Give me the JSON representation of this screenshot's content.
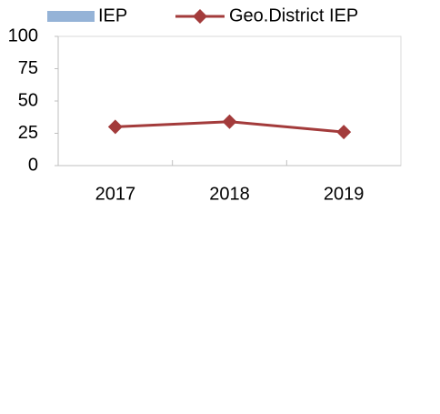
{
  "chart_data": {
    "type": "line",
    "categories": [
      "2017",
      "2018",
      "2019"
    ],
    "series": [
      {
        "name": "IEP",
        "type": "bar",
        "color": "#95b3d7",
        "values": [
          null,
          null,
          null
        ]
      },
      {
        "name": "Geo.District IEP",
        "type": "line",
        "color": "#a33b3b",
        "values": [
          30,
          34,
          26
        ]
      }
    ],
    "ylim": [
      0,
      100
    ],
    "yticks": [
      0,
      25,
      50,
      75,
      100
    ],
    "grid": false,
    "legend": "top"
  }
}
